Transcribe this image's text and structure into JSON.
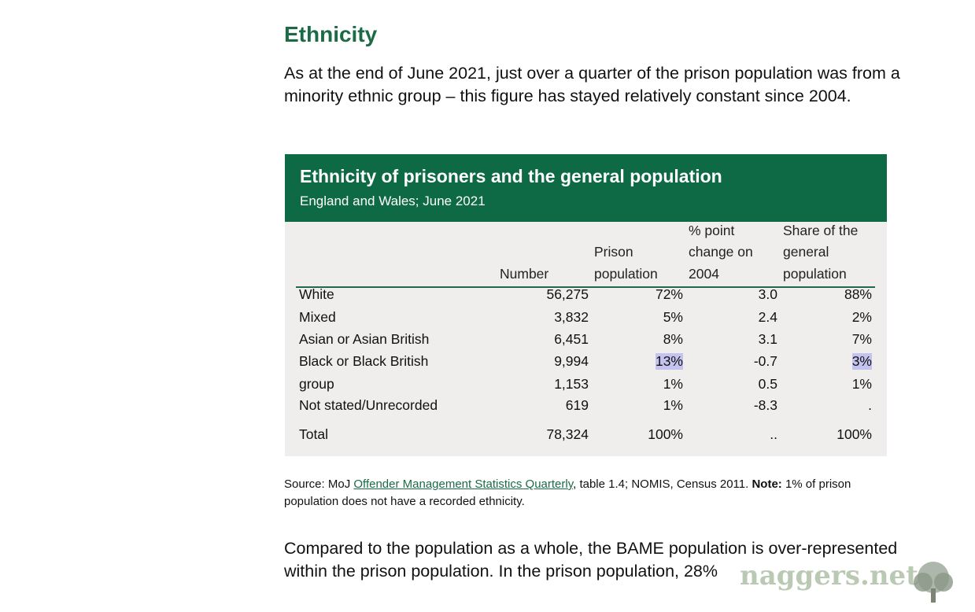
{
  "heading": "Ethnicity",
  "intro": "As at the end of June 2021, just over a quarter of the prison population was from a minority ethnic group – this figure has stayed relatively constant since 2004.",
  "table_box": {
    "title": "Ethnicity of prisoners and the general population",
    "subtitle": "England and Wales; June 2021",
    "columns": [
      "",
      "Number",
      "Prison population",
      "% point change on 2004",
      "Share of the general population"
    ],
    "rows": [
      {
        "label": "White",
        "number": "56,275",
        "prison": "72%",
        "change": "3.0",
        "share": "88%"
      },
      {
        "label": "Mixed",
        "number": "3,832",
        "prison": "5%",
        "change": "2.4",
        "share": "2%"
      },
      {
        "label": "Asian or Asian British",
        "number": "6,451",
        "prison": "8%",
        "change": "3.1",
        "share": "7%"
      },
      {
        "label": "Black or Black British",
        "number": "9,994",
        "prison": "13%",
        "change": "-0.7",
        "share": "3%"
      },
      {
        "label": "group",
        "number": "1,153",
        "prison": "1%",
        "change": "0.5",
        "share": "1%"
      },
      {
        "label": "Not stated/Unrecorded",
        "number": "619",
        "prison": "1%",
        "change": "-8.3",
        "share": "."
      },
      {
        "label": "Total",
        "number": "78,324",
        "prison": "100%",
        "change": "..",
        "share": "100%"
      }
    ],
    "highlight_color": "#c4c3ef",
    "header_color": "#0d6a45"
  },
  "source": {
    "prefix": "Source:  MoJ ",
    "link": "Offender Management Statistics Quarterly",
    "middle": ", table 1.4; NOMIS, Census 2011. ",
    "note_label": "Note:",
    "note": " 1% of prison population does not have a recorded ethnicity."
  },
  "closing": "Compared to the population as a whole, the BAME population is over-represented within the prison population. In the prison population, 28%",
  "watermark": "naggers.net"
}
